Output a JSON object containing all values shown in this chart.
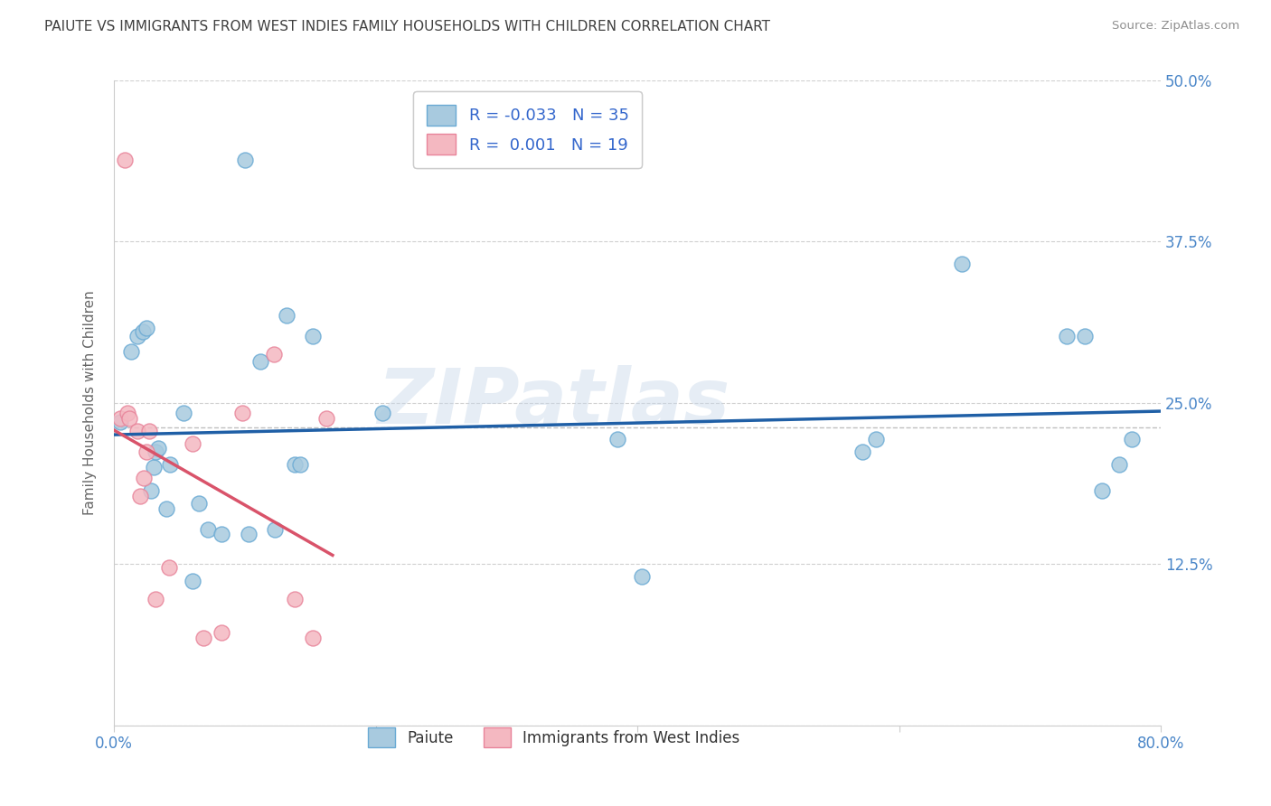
{
  "title": "PAIUTE VS IMMIGRANTS FROM WEST INDIES FAMILY HOUSEHOLDS WITH CHILDREN CORRELATION CHART",
  "source": "Source: ZipAtlas.com",
  "ylabel": "Family Households with Children",
  "watermark": "ZIPatlas",
  "xlim": [
    0.0,
    0.8
  ],
  "ylim": [
    0.0,
    0.5
  ],
  "yticks": [
    0.0,
    0.125,
    0.25,
    0.375,
    0.5
  ],
  "ytick_labels": [
    "",
    "12.5%",
    "25.0%",
    "37.5%",
    "50.0%"
  ],
  "xticks": [
    0.0,
    0.2,
    0.4,
    0.6,
    0.8
  ],
  "xtick_labels": [
    "0.0%",
    "",
    "",
    "",
    "80.0%"
  ],
  "legend_labels": [
    "Paiute",
    "Immigrants from West Indies"
  ],
  "R_paiute": -0.033,
  "N_paiute": 35,
  "R_immigrants": 0.001,
  "N_immigrants": 19,
  "color_paiute": "#a8cadf",
  "color_paiute_edge": "#6aaad4",
  "color_immigrants": "#f4b8c1",
  "color_immigrants_edge": "#e8849a",
  "trendline_color_paiute": "#1f5fa6",
  "trendline_color_immigrants": "#d9536a",
  "mean_line_color": "#c0c0c0",
  "background_color": "#ffffff",
  "grid_color": "#d0d0d0",
  "axis_label_color": "#4a86c8",
  "title_color": "#404040",
  "source_color": "#909090",
  "legend_text_color": "#333333",
  "legend_value_color": "#3366cc",
  "paiute_x": [
    0.005,
    0.013,
    0.018,
    0.022,
    0.025,
    0.028,
    0.03,
    0.032,
    0.034,
    0.04,
    0.043,
    0.053,
    0.06,
    0.065,
    0.072,
    0.082,
    0.1,
    0.103,
    0.112,
    0.123,
    0.132,
    0.138,
    0.142,
    0.152,
    0.205,
    0.385,
    0.403,
    0.572,
    0.582,
    0.648,
    0.728,
    0.742,
    0.755,
    0.768,
    0.778
  ],
  "paiute_y": [
    0.235,
    0.29,
    0.302,
    0.305,
    0.308,
    0.182,
    0.2,
    0.212,
    0.215,
    0.168,
    0.202,
    0.242,
    0.112,
    0.172,
    0.152,
    0.148,
    0.438,
    0.148,
    0.282,
    0.152,
    0.318,
    0.202,
    0.202,
    0.302,
    0.242,
    0.222,
    0.115,
    0.212,
    0.222,
    0.358,
    0.302,
    0.302,
    0.182,
    0.202,
    0.222
  ],
  "immigrants_x": [
    0.005,
    0.008,
    0.01,
    0.012,
    0.018,
    0.02,
    0.023,
    0.025,
    0.027,
    0.032,
    0.042,
    0.06,
    0.068,
    0.082,
    0.098,
    0.122,
    0.138,
    0.152,
    0.162
  ],
  "immigrants_y": [
    0.238,
    0.438,
    0.242,
    0.238,
    0.228,
    0.178,
    0.192,
    0.212,
    0.228,
    0.098,
    0.122,
    0.218,
    0.068,
    0.072,
    0.242,
    0.288,
    0.098,
    0.068,
    0.238
  ]
}
